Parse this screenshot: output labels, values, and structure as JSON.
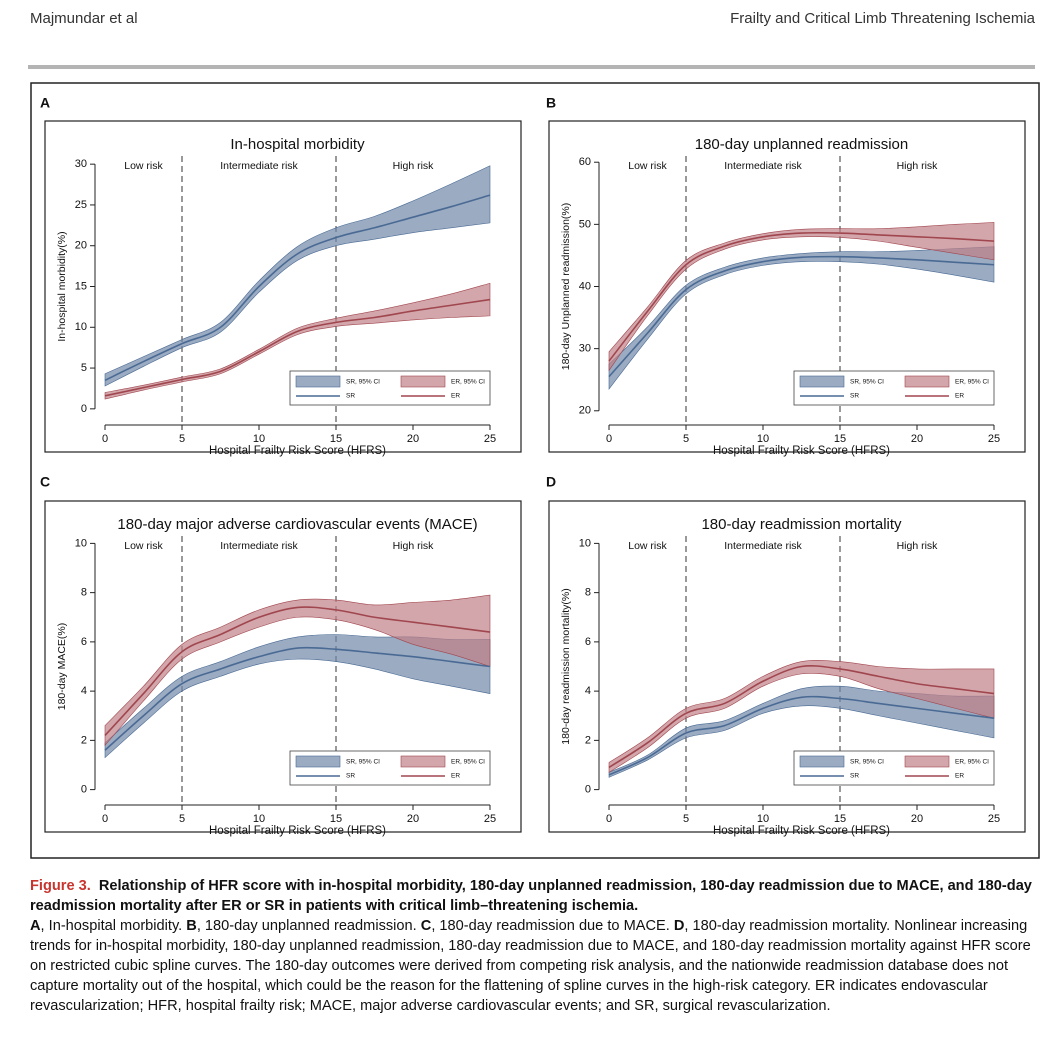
{
  "header": {
    "left": "Majmundar et al",
    "right": "Frailty and Critical Limb Threatening Ischemia"
  },
  "chart_data": [
    {
      "type": "line",
      "panel": "A",
      "title": "In-hospital morbidity",
      "xlabel": "Hospital Frailty Risk Score (HFRS)",
      "ylabel": "In-hospital morbidity(%)",
      "xlim": [
        0,
        25
      ],
      "xticks": [
        0,
        5,
        10,
        15,
        20,
        25
      ],
      "ylim": [
        -1,
        31
      ],
      "yticks": [
        0,
        5,
        10,
        15,
        20,
        25,
        30
      ],
      "zones": [
        "Low risk",
        "Intermediate risk",
        "High risk"
      ],
      "cutoffs": [
        5,
        15
      ],
      "x": [
        0,
        2.5,
        5,
        7.5,
        10,
        12.5,
        15,
        17.5,
        20,
        22.5,
        25
      ],
      "series": [
        {
          "name": "SR",
          "band_name": "SR, 95% CI",
          "color": "#4a6a94",
          "band_color": "#6f87a8",
          "values": [
            3.5,
            5.8,
            8,
            10,
            15,
            19,
            21,
            22.2,
            23.5,
            24.8,
            26.2
          ],
          "lower": [
            2.8,
            5.2,
            7.5,
            9.4,
            14.3,
            18.2,
            20,
            20.8,
            21.6,
            22.2,
            22.8
          ],
          "upper": [
            4.3,
            6.4,
            8.5,
            10.6,
            15.7,
            19.9,
            22.2,
            23.6,
            25.5,
            27.6,
            29.8
          ]
        },
        {
          "name": "ER",
          "band_name": "ER, 95% CI",
          "color": "#a0464e",
          "band_color": "#c08088",
          "values": [
            1.6,
            2.6,
            3.6,
            4.6,
            7,
            9.5,
            10.6,
            11.2,
            12,
            12.7,
            13.4
          ],
          "lower": [
            1.2,
            2.3,
            3.3,
            4.3,
            6.7,
            9.1,
            10.1,
            10.5,
            10.9,
            11.2,
            11.4
          ],
          "upper": [
            2,
            2.9,
            3.9,
            4.9,
            7.3,
            9.9,
            11.1,
            12,
            13,
            14.1,
            15.4
          ]
        }
      ]
    },
    {
      "type": "line",
      "panel": "B",
      "title": "180-day  unplanned readmission",
      "xlabel": "Hospital Frailty Risk Score (HFRS)",
      "ylabel": "180-day Unplanned readmission(%)",
      "xlim": [
        0,
        25
      ],
      "xticks": [
        0,
        5,
        10,
        15,
        20,
        25
      ],
      "ylim": [
        19,
        61
      ],
      "yticks": [
        20,
        30,
        40,
        50,
        60
      ],
      "zones": [
        "Low risk",
        "Intermediate risk",
        "High risk"
      ],
      "cutoffs": [
        5,
        15
      ],
      "x": [
        0,
        2.5,
        5,
        7.5,
        10,
        12.5,
        15,
        17.5,
        20,
        22.5,
        25
      ],
      "series": [
        {
          "name": "SR",
          "band_name": "SR, 95% CI",
          "color": "#4a6a94",
          "band_color": "#6f87a8",
          "values": [
            25.5,
            32.5,
            39.5,
            42.5,
            44,
            44.7,
            44.8,
            44.6,
            44.3,
            43.9,
            43.5
          ],
          "lower": [
            23.5,
            31.5,
            38.8,
            41.9,
            43.4,
            44,
            44,
            43.6,
            42.8,
            41.8,
            40.7
          ],
          "upper": [
            27.5,
            33.5,
            40.2,
            43.1,
            44.6,
            45.3,
            45.6,
            45.6,
            45.8,
            46.1,
            46.4
          ]
        },
        {
          "name": "ER",
          "band_name": "ER, 95% CI",
          "color": "#a0464e",
          "band_color": "#c08088",
          "values": [
            28,
            36,
            43.5,
            46.5,
            48,
            48.6,
            48.6,
            48.3,
            48,
            47.7,
            47.3
          ],
          "lower": [
            26.5,
            35.3,
            42.8,
            46,
            47.5,
            48,
            47.9,
            47.3,
            46.3,
            45.3,
            44.3
          ],
          "upper": [
            29.5,
            36.7,
            44.2,
            47,
            48.5,
            49.2,
            49.3,
            49.3,
            49.6,
            50,
            50.3
          ]
        }
      ]
    },
    {
      "type": "line",
      "panel": "C",
      "title": "180-day major adverse cardiovascular events (MACE)",
      "xlabel": "Hospital Frailty Risk Score (HFRS)",
      "ylabel": "180-day MACE(%)",
      "xlim": [
        0,
        25
      ],
      "xticks": [
        0,
        5,
        10,
        15,
        20,
        25
      ],
      "ylim": [
        -0.3,
        10.3
      ],
      "yticks": [
        0,
        2,
        4,
        6,
        8,
        10
      ],
      "zones": [
        "Low risk",
        "Intermediate risk",
        "High risk"
      ],
      "cutoffs": [
        5,
        15
      ],
      "x": [
        0,
        2.5,
        5,
        7.5,
        10,
        12.5,
        15,
        17.5,
        20,
        22.5,
        25
      ],
      "series": [
        {
          "name": "SR",
          "band_name": "SR, 95% CI",
          "color": "#4a6a94",
          "band_color": "#6f87a8",
          "values": [
            1.6,
            3,
            4.3,
            4.9,
            5.4,
            5.75,
            5.7,
            5.55,
            5.4,
            5.2,
            5
          ],
          "lower": [
            1.3,
            2.7,
            4,
            4.6,
            5.1,
            5.3,
            5.2,
            4.9,
            4.5,
            4.2,
            3.9
          ],
          "upper": [
            1.9,
            3.3,
            4.6,
            5.2,
            5.8,
            6.2,
            6.3,
            6.2,
            6.2,
            6.1,
            6.1
          ]
        },
        {
          "name": "ER",
          "band_name": "ER, 95% CI",
          "color": "#a0464e",
          "band_color": "#c08088",
          "values": [
            2.2,
            3.9,
            5.6,
            6.3,
            7,
            7.4,
            7.3,
            7,
            6.8,
            6.6,
            6.4
          ],
          "lower": [
            1.8,
            3.6,
            5.3,
            6,
            6.6,
            7,
            6.9,
            6.5,
            5.9,
            5.5,
            5
          ],
          "upper": [
            2.6,
            4.2,
            5.9,
            6.6,
            7.3,
            7.7,
            7.7,
            7.5,
            7.6,
            7.7,
            7.9
          ]
        }
      ]
    },
    {
      "type": "line",
      "panel": "D",
      "title": "180-day readmission mortality",
      "xlabel": "Hospital Frailty Risk Score (HFRS)",
      "ylabel": "180-day readmission mortality(%)",
      "xlim": [
        0,
        25
      ],
      "xticks": [
        0,
        5,
        10,
        15,
        20,
        25
      ],
      "ylim": [
        -0.3,
        10.3
      ],
      "yticks": [
        0,
        2,
        4,
        6,
        8,
        10
      ],
      "zones": [
        "Low risk",
        "Intermediate risk",
        "High risk"
      ],
      "cutoffs": [
        5,
        15
      ],
      "x": [
        0,
        2.5,
        5,
        7.5,
        10,
        12.5,
        15,
        17.5,
        20,
        22.5,
        25
      ],
      "series": [
        {
          "name": "SR",
          "band_name": "SR, 95% CI",
          "color": "#4a6a94",
          "band_color": "#6f87a8",
          "values": [
            0.6,
            1.3,
            2.3,
            2.6,
            3.3,
            3.75,
            3.7,
            3.5,
            3.3,
            3.1,
            2.9
          ],
          "lower": [
            0.5,
            1.2,
            2.1,
            2.4,
            3.1,
            3.4,
            3.3,
            3,
            2.7,
            2.4,
            2.1
          ],
          "upper": [
            0.7,
            1.4,
            2.5,
            2.8,
            3.5,
            4.1,
            4.2,
            4,
            3.9,
            3.8,
            3.8
          ]
        },
        {
          "name": "ER",
          "band_name": "ER, 95% CI",
          "color": "#a0464e",
          "band_color": "#c08088",
          "values": [
            0.9,
            1.9,
            3.1,
            3.5,
            4.4,
            5,
            4.9,
            4.6,
            4.3,
            4.1,
            3.9
          ],
          "lower": [
            0.7,
            1.7,
            2.9,
            3.3,
            4.2,
            4.7,
            4.6,
            4.1,
            3.7,
            3.3,
            2.9
          ],
          "upper": [
            1.1,
            2.1,
            3.3,
            3.7,
            4.6,
            5.2,
            5.2,
            5,
            4.9,
            4.9,
            4.9
          ]
        }
      ]
    }
  ],
  "caption": {
    "label": "Figure 3.",
    "title": "Relationship of HFR score with in-hospital morbidity, 180-day unplanned readmission, 180-day readmission due to MACE, and 180-day readmission mortality after ER or SR in patients with critical limb–threatening ischemia.",
    "panels": [
      {
        "letter": "A",
        "text": ", In-hospital morbidity."
      },
      {
        "letter": "B",
        "text": ", 180-day unplanned readmission."
      },
      {
        "letter": "C",
        "text": ", 180-day readmission due to MACE."
      },
      {
        "letter": "D",
        "text": ", 180-day readmission mortality."
      }
    ],
    "body": "Nonlinear increasing trends for in-hospital morbidity, 180-day unplanned readmission, 180-day readmission due to MACE, and 180-day readmission mortality against HFR score on restricted cubic spline curves. The 180-day outcomes were derived from competing risk analysis, and the nationwide readmission database does not capture mortality out of the hospital, which could be the reason for the flattening of spline curves in the high-risk category. ER indicates endovascular revascularization; HFR, hospital frailty risk; MACE, major adverse cardiovascular events; and SR, surgical revascularization."
  }
}
